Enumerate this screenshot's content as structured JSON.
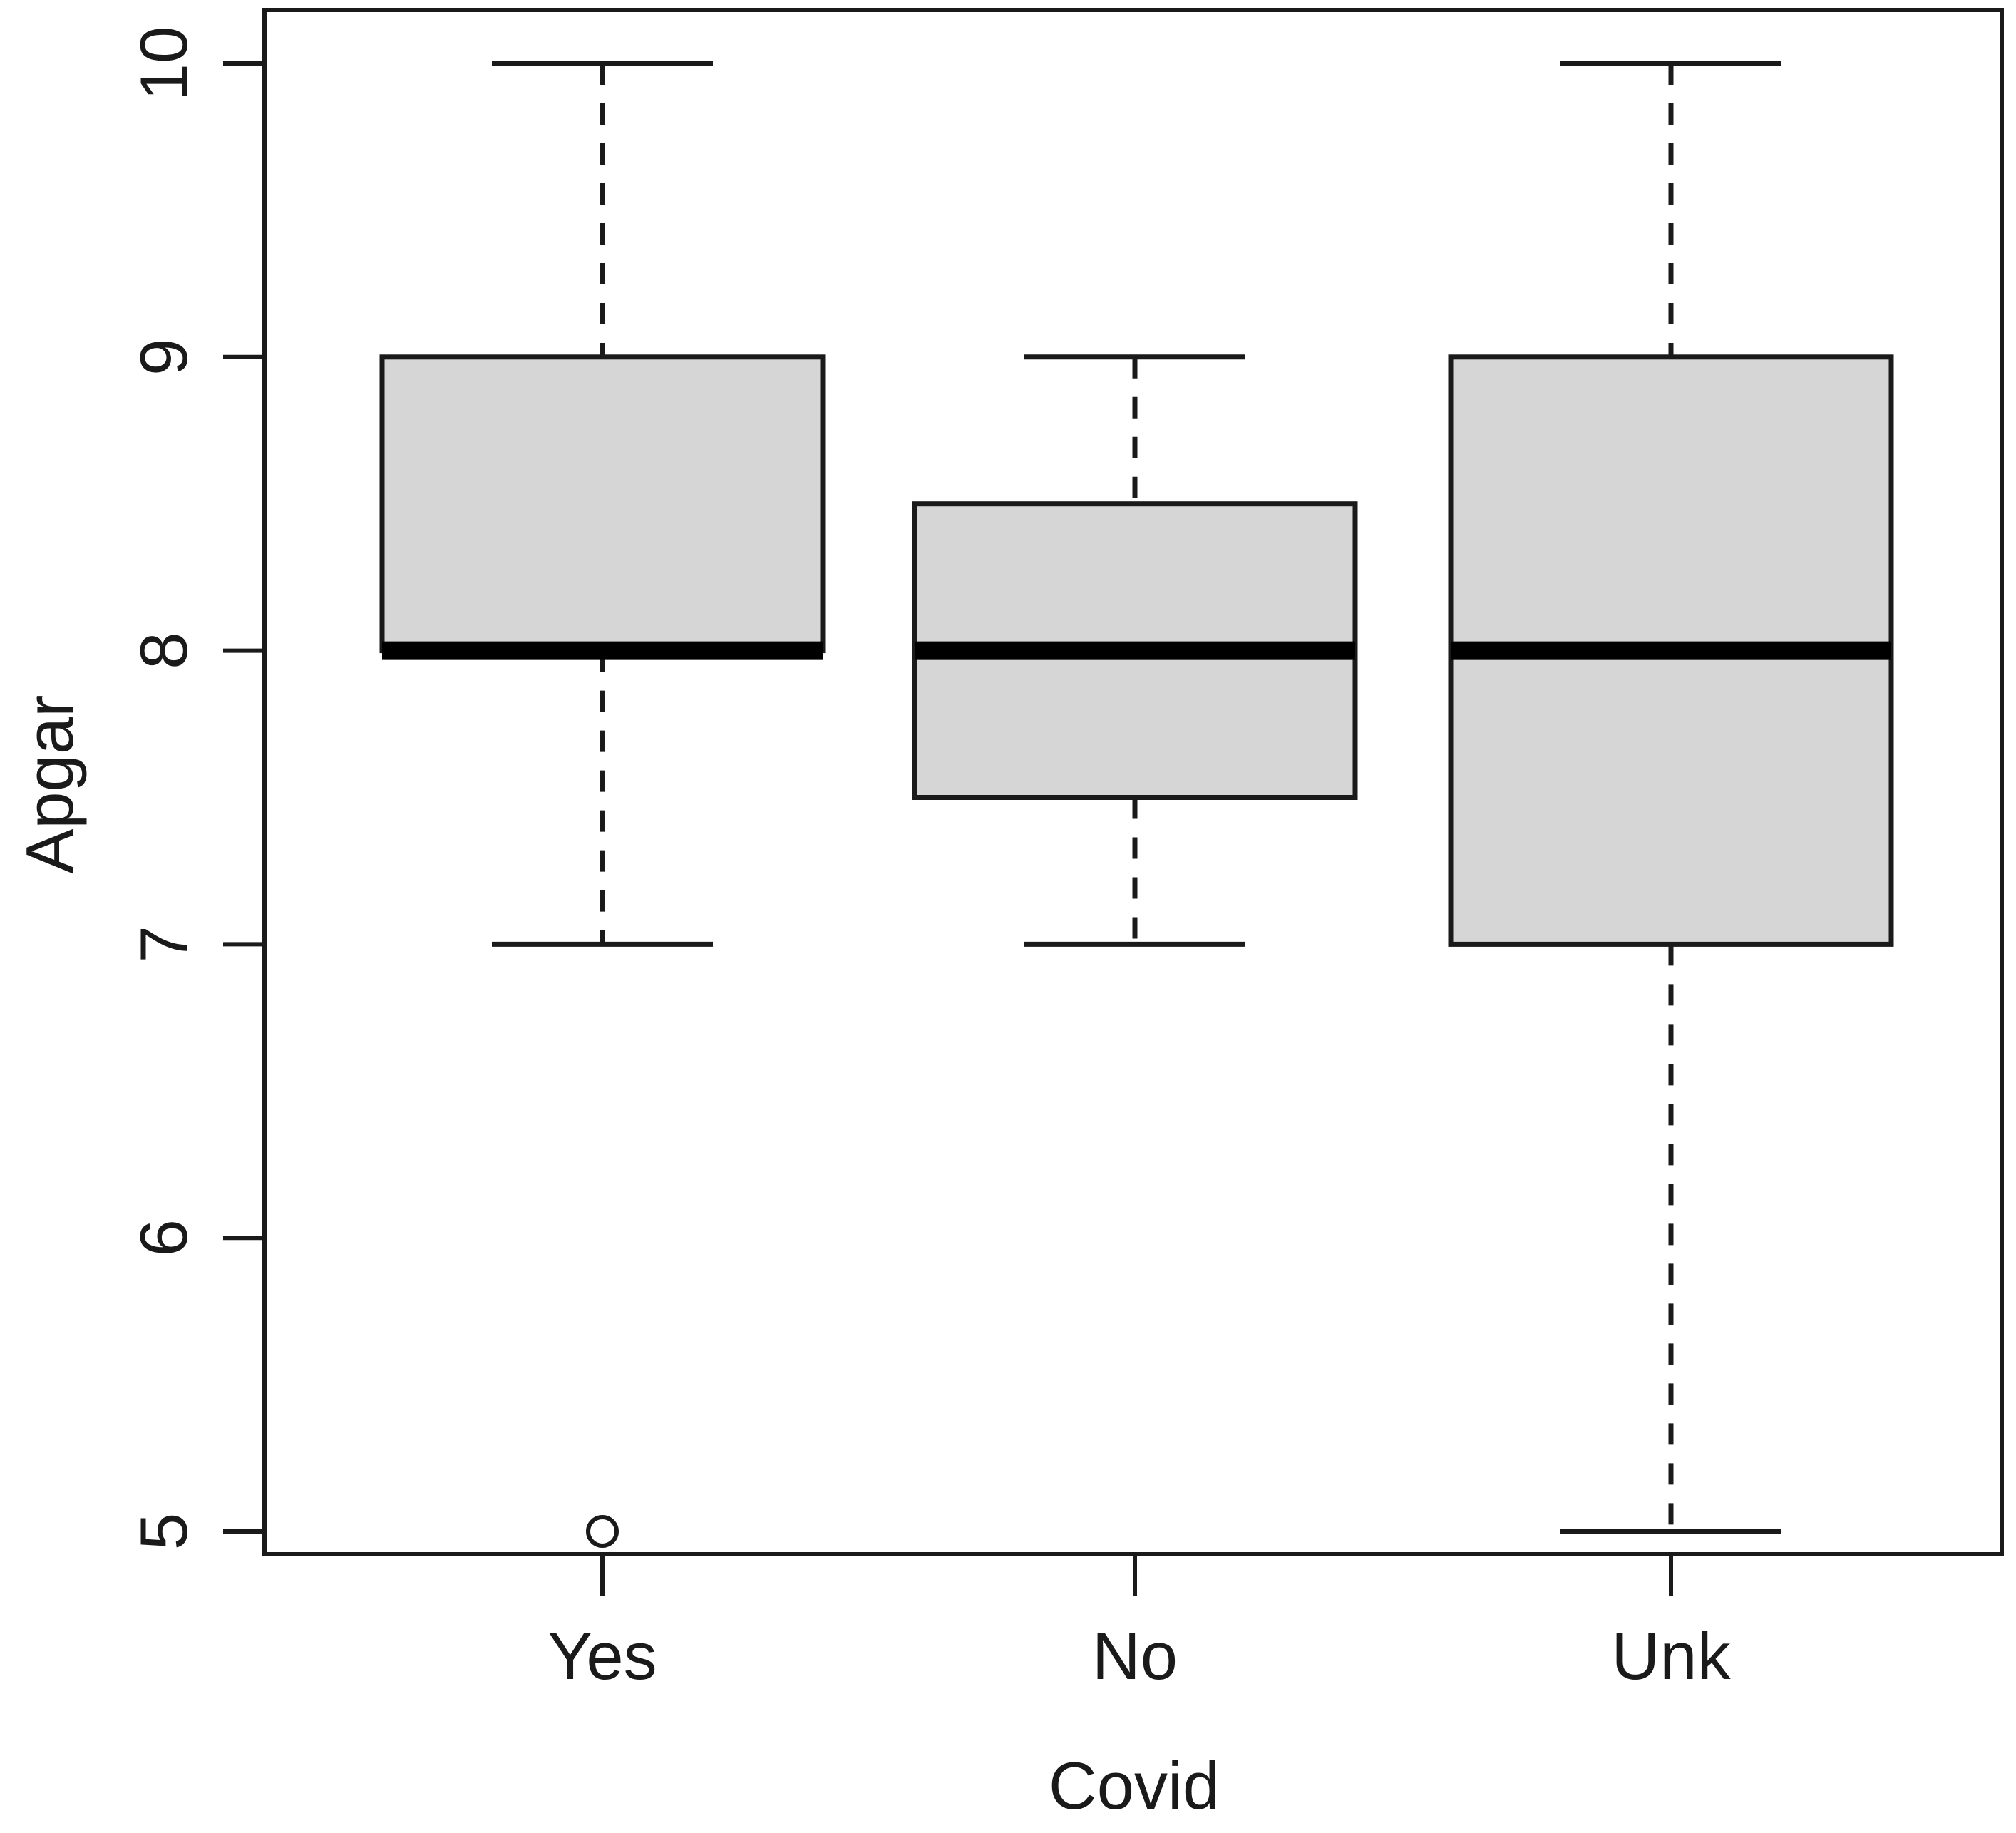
{
  "figure": {
    "background": "#ffffff",
    "description": "Boxplot of Apgar score by Covid status"
  },
  "chart_data": {
    "type": "boxplot",
    "title": "",
    "xlabel": "Covid",
    "ylabel": "Apgar",
    "categories": [
      "Yes",
      "No",
      "Unk"
    ],
    "y_ticks": [
      5,
      6,
      7,
      8,
      9,
      10
    ],
    "y_tick_labels": [
      "5",
      "6",
      "7",
      "8",
      "9",
      "10"
    ],
    "ylim": [
      4.8,
      10.2
    ],
    "grid": false,
    "legend": false,
    "series": [
      {
        "name": "Yes",
        "whisker_low": 7,
        "q1": 8,
        "median": 8,
        "q3": 9,
        "whisker_high": 10,
        "outliers": [
          5
        ]
      },
      {
        "name": "No",
        "whisker_low": 7,
        "q1": 7.5,
        "median": 8,
        "q3": 8.5,
        "whisker_high": 9,
        "outliers": []
      },
      {
        "name": "Unk",
        "whisker_low": 5,
        "q1": 7,
        "median": 8,
        "q3": 9,
        "whisker_high": 10,
        "outliers": []
      }
    ],
    "style": {
      "box_fill": "#d6d6d6",
      "line_color": "#1a1a1a",
      "median_color": "#000000",
      "background": "#ffffff"
    }
  }
}
